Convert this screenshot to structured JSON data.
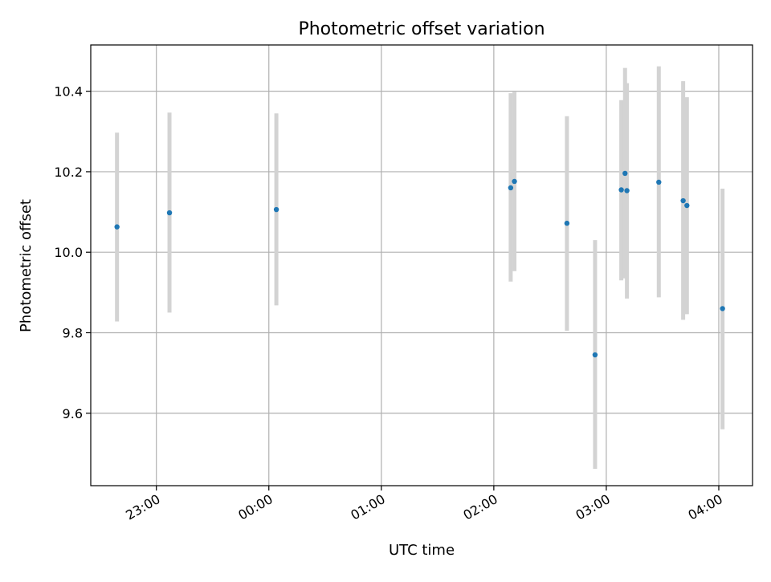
{
  "chart_data": {
    "type": "scatter",
    "title": "Photometric offset variation",
    "xlabel": "UTC time",
    "ylabel": "Photometric offset",
    "x_ticks": [
      "23:00",
      "00:00",
      "01:00",
      "02:00",
      "03:00",
      "04:00"
    ],
    "y_ticks": [
      "9.6",
      "9.8",
      "10.0",
      "10.2",
      "10.4"
    ],
    "y_tick_values": [
      9.6,
      9.8,
      10.0,
      10.2,
      10.4
    ],
    "xlim": [
      "22:25",
      "04:18"
    ],
    "ylim": [
      9.42,
      10.515
    ],
    "grid": true,
    "points": [
      {
        "time": "22:39",
        "y": 10.063,
        "yerr_low": 9.828,
        "yerr_high": 10.297
      },
      {
        "time": "23:07",
        "y": 10.098,
        "yerr_low": 9.85,
        "yerr_high": 10.347
      },
      {
        "time": "00:04",
        "y": 10.106,
        "yerr_low": 9.868,
        "yerr_high": 10.345
      },
      {
        "time": "02:09",
        "y": 10.16,
        "yerr_low": 9.927,
        "yerr_high": 10.395
      },
      {
        "time": "02:11",
        "y": 10.176,
        "yerr_low": 9.953,
        "yerr_high": 10.398
      },
      {
        "time": "02:39",
        "y": 10.072,
        "yerr_low": 9.805,
        "yerr_high": 10.338
      },
      {
        "time": "02:54",
        "y": 9.745,
        "yerr_low": 9.462,
        "yerr_high": 10.03
      },
      {
        "time": "03:08",
        "y": 10.155,
        "yerr_low": 9.93,
        "yerr_high": 10.378
      },
      {
        "time": "03:10",
        "y": 10.196,
        "yerr_low": 9.935,
        "yerr_high": 10.458
      },
      {
        "time": "03:11",
        "y": 10.153,
        "yerr_low": 9.885,
        "yerr_high": 10.42
      },
      {
        "time": "03:28",
        "y": 10.174,
        "yerr_low": 9.888,
        "yerr_high": 10.462
      },
      {
        "time": "03:41",
        "y": 10.128,
        "yerr_low": 9.832,
        "yerr_high": 10.425
      },
      {
        "time": "03:43",
        "y": 10.116,
        "yerr_low": 9.846,
        "yerr_high": 10.385
      },
      {
        "time": "04:02",
        "y": 9.86,
        "yerr_low": 9.56,
        "yerr_high": 10.158
      }
    ],
    "colors": {
      "marker": "#1f77b4",
      "errorbar": "#d3d3d3",
      "grid": "#b0b0b0",
      "axes": "#000000"
    }
  }
}
